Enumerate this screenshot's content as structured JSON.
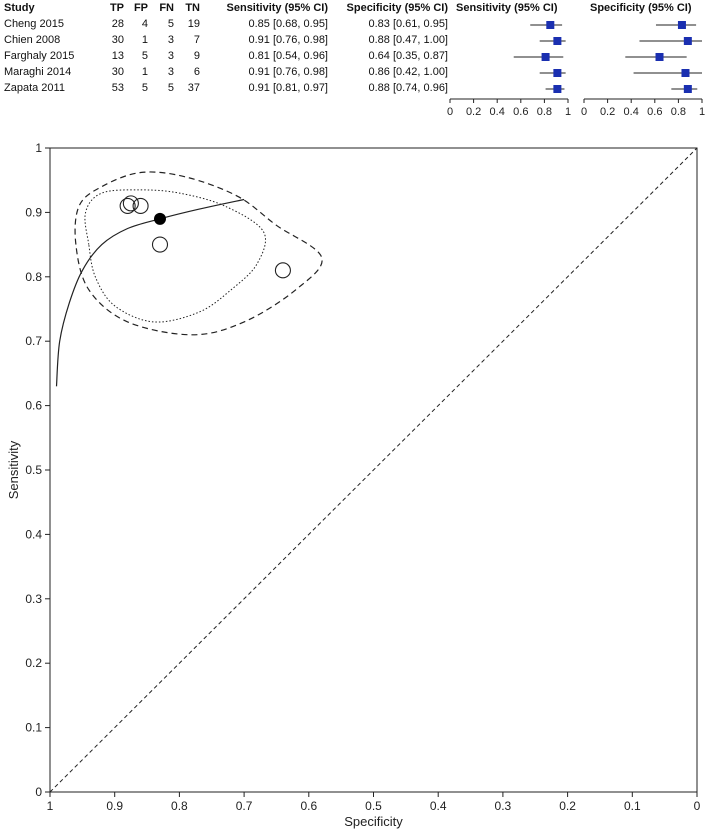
{
  "table": {
    "headers": {
      "study": "Study",
      "tp": "TP",
      "fp": "FP",
      "fn": "FN",
      "tn": "TN",
      "sens": "Sensitivity (95% CI)",
      "spec": "Specificity (95% CI)"
    },
    "rows": [
      {
        "study": "Cheng 2015",
        "tp": "28",
        "fp": "4",
        "fn": "5",
        "tn": "19",
        "sens_text": "0.85 [0.68, 0.95]",
        "spec_text": "0.83 [0.61, 0.95]"
      },
      {
        "study": "Chien 2008",
        "tp": "30",
        "fp": "1",
        "fn": "3",
        "tn": "7",
        "sens_text": "0.91 [0.76, 0.98]",
        "spec_text": "0.88 [0.47, 1.00]"
      },
      {
        "study": "Farghaly 2015",
        "tp": "13",
        "fp": "5",
        "fn": "3",
        "tn": "9",
        "sens_text": "0.81 [0.54, 0.96]",
        "spec_text": "0.64 [0.35, 0.87]"
      },
      {
        "study": "Maraghi 2014",
        "tp": "30",
        "fp": "1",
        "fn": "3",
        "tn": "6",
        "sens_text": "0.91 [0.76, 0.98]",
        "spec_text": "0.86 [0.42, 1.00]"
      },
      {
        "study": "Zapata 2011",
        "tp": "53",
        "fp": "5",
        "fn": "5",
        "tn": "37",
        "sens_text": "0.91 [0.81, 0.97]",
        "spec_text": "0.88 [0.74, 0.96]"
      }
    ]
  },
  "chart_data": [
    {
      "type": "forest",
      "title": "Sensitivity (95% CI)",
      "xlim": [
        0,
        1
      ],
      "ticks": [
        "0",
        "0.2",
        "0.4",
        "0.6",
        "0.8",
        "1"
      ],
      "tick_values": [
        0,
        0.2,
        0.4,
        0.6,
        0.8,
        1
      ],
      "marker_color": "#1a2fb0",
      "points": [
        {
          "study": "Cheng 2015",
          "value": 0.85,
          "lo": 0.68,
          "hi": 0.95
        },
        {
          "study": "Chien 2008",
          "value": 0.91,
          "lo": 0.76,
          "hi": 0.98
        },
        {
          "study": "Farghaly 2015",
          "value": 0.81,
          "lo": 0.54,
          "hi": 0.96
        },
        {
          "study": "Maraghi 2014",
          "value": 0.91,
          "lo": 0.76,
          "hi": 0.98
        },
        {
          "study": "Zapata 2011",
          "value": 0.91,
          "lo": 0.81,
          "hi": 0.97
        }
      ]
    },
    {
      "type": "forest",
      "title": "Specificity (95% CI)",
      "xlim": [
        0,
        1
      ],
      "ticks": [
        "0",
        "0.2",
        "0.4",
        "0.6",
        "0.8",
        "1"
      ],
      "tick_values": [
        0,
        0.2,
        0.4,
        0.6,
        0.8,
        1
      ],
      "marker_color": "#1a2fb0",
      "points": [
        {
          "study": "Cheng 2015",
          "value": 0.83,
          "lo": 0.61,
          "hi": 0.95
        },
        {
          "study": "Chien 2008",
          "value": 0.88,
          "lo": 0.47,
          "hi": 1.0
        },
        {
          "study": "Farghaly 2015",
          "value": 0.64,
          "lo": 0.35,
          "hi": 0.87
        },
        {
          "study": "Maraghi 2014",
          "value": 0.86,
          "lo": 0.42,
          "hi": 1.0
        },
        {
          "study": "Zapata 2011",
          "value": 0.88,
          "lo": 0.74,
          "hi": 0.96
        }
      ]
    },
    {
      "type": "scatter",
      "xlabel": "Specificity",
      "ylabel": "Sensitivity",
      "xlim": [
        1,
        0
      ],
      "ylim": [
        0,
        1
      ],
      "xticks": [
        "1",
        "0.9",
        "0.8",
        "0.7",
        "0.6",
        "0.5",
        "0.4",
        "0.3",
        "0.2",
        "0.1",
        "0"
      ],
      "xtick_values": [
        1,
        0.9,
        0.8,
        0.7,
        0.6,
        0.5,
        0.4,
        0.3,
        0.2,
        0.1,
        0
      ],
      "yticks": [
        "0",
        "0.1",
        "0.2",
        "0.3",
        "0.4",
        "0.5",
        "0.6",
        "0.7",
        "0.8",
        "0.9",
        "1"
      ],
      "ytick_values": [
        0,
        0.1,
        0.2,
        0.3,
        0.4,
        0.5,
        0.6,
        0.7,
        0.8,
        0.9,
        1
      ],
      "studies": [
        {
          "study": "Cheng 2015",
          "spec": 0.83,
          "sens": 0.85
        },
        {
          "study": "Chien 2008",
          "spec": 0.88,
          "sens": 0.91
        },
        {
          "study": "Farghaly 2015",
          "spec": 0.64,
          "sens": 0.81
        },
        {
          "study": "Maraghi 2014",
          "spec": 0.86,
          "sens": 0.91
        },
        {
          "study": "Zapata 2011",
          "spec": 0.875,
          "sens": 0.914
        }
      ],
      "summary_point": {
        "spec": 0.83,
        "sens": 0.89
      },
      "sroc_curve": [
        [
          0.99,
          0.63
        ],
        [
          0.985,
          0.7
        ],
        [
          0.97,
          0.76
        ],
        [
          0.95,
          0.81
        ],
        [
          0.92,
          0.85
        ],
        [
          0.88,
          0.875
        ],
        [
          0.83,
          0.89
        ],
        [
          0.77,
          0.905
        ],
        [
          0.7,
          0.92
        ]
      ],
      "confidence_region": [
        [
          0.94,
          0.85
        ],
        [
          0.945,
          0.9
        ],
        [
          0.92,
          0.93
        ],
        [
          0.86,
          0.935
        ],
        [
          0.8,
          0.93
        ],
        [
          0.73,
          0.91
        ],
        [
          0.67,
          0.87
        ],
        [
          0.68,
          0.82
        ],
        [
          0.72,
          0.78
        ],
        [
          0.77,
          0.745
        ],
        [
          0.84,
          0.73
        ],
        [
          0.9,
          0.755
        ],
        [
          0.93,
          0.8
        ]
      ],
      "prediction_region": [
        [
          0.96,
          0.85
        ],
        [
          0.955,
          0.91
        ],
        [
          0.92,
          0.94
        ],
        [
          0.86,
          0.962
        ],
        [
          0.79,
          0.955
        ],
        [
          0.71,
          0.925
        ],
        [
          0.65,
          0.88
        ],
        [
          0.58,
          0.83
        ],
        [
          0.62,
          0.78
        ],
        [
          0.7,
          0.73
        ],
        [
          0.78,
          0.71
        ],
        [
          0.88,
          0.73
        ],
        [
          0.94,
          0.78
        ]
      ],
      "diagonal": [
        [
          1,
          0
        ],
        [
          0,
          1
        ]
      ]
    }
  ]
}
